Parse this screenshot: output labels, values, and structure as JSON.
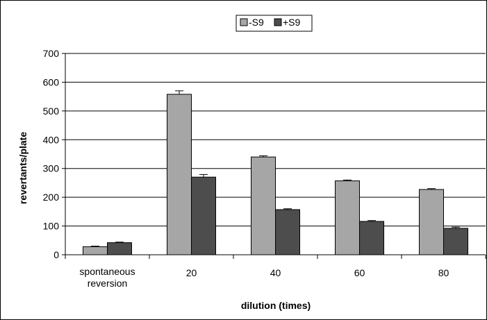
{
  "chart_data": {
    "type": "bar",
    "title": "",
    "xlabel": "dilution (times)",
    "ylabel": "revertants/plate",
    "categories": [
      "spontaneous reversion",
      "20",
      "40",
      "60",
      "80"
    ],
    "category_lines": [
      [
        "spontaneous",
        "reversion"
      ],
      [
        "20"
      ],
      [
        "40"
      ],
      [
        "60"
      ],
      [
        "80"
      ]
    ],
    "series": [
      {
        "name": "-S9",
        "color": "#a6a6a6",
        "values": [
          28,
          558,
          340,
          257,
          227
        ],
        "errors": [
          2,
          12,
          4,
          3,
          3
        ]
      },
      {
        "name": "+S9",
        "color": "#4d4d4d",
        "values": [
          42,
          270,
          157,
          116,
          92
        ],
        "errors": [
          2,
          9,
          3,
          3,
          4
        ]
      }
    ],
    "ylim": [
      0,
      700
    ],
    "yticks": [
      "0",
      "100",
      "200",
      "300",
      "400",
      "500",
      "600",
      "700"
    ],
    "grid": true,
    "legend_position": "top-center"
  }
}
